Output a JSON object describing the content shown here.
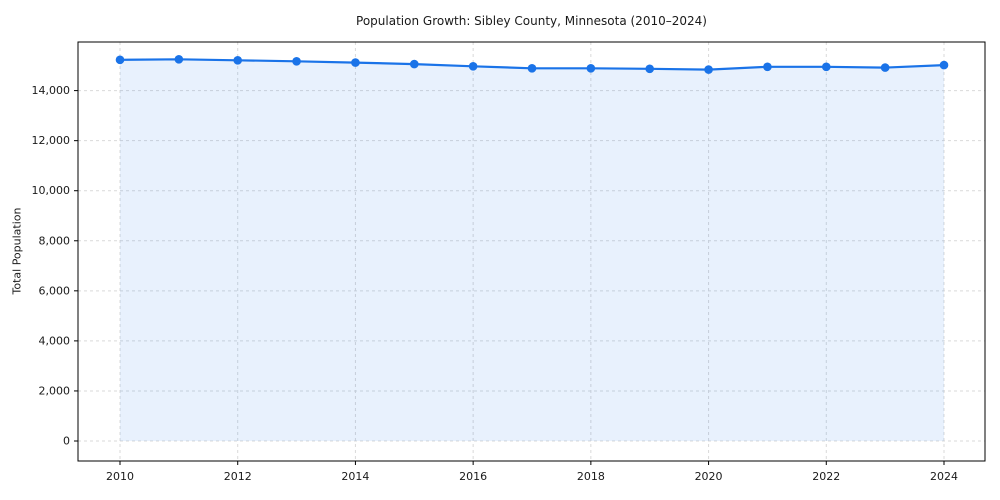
{
  "chart_data": {
    "type": "area",
    "title": "Population Growth: Sibley County, Minnesota (2010–2024)",
    "xlabel": "",
    "ylabel": "Total Population",
    "x": [
      2010,
      2011,
      2012,
      2013,
      2014,
      2015,
      2016,
      2017,
      2018,
      2019,
      2020,
      2021,
      2022,
      2023,
      2024
    ],
    "series": [
      {
        "name": "Total Population",
        "values": [
          15230,
          15250,
          15210,
          15170,
          15120,
          15060,
          14970,
          14890,
          14890,
          14870,
          14840,
          14950,
          14950,
          14920,
          15020
        ]
      }
    ],
    "xticks": [
      2010,
      2012,
      2014,
      2016,
      2018,
      2020,
      2022,
      2024
    ],
    "yticks": [
      0,
      2000,
      4000,
      6000,
      8000,
      10000,
      12000,
      14000
    ],
    "ytick_labels": [
      "0",
      "2,000",
      "4,000",
      "6,000",
      "8,000",
      "10,000",
      "12,000",
      "14,000"
    ],
    "ylim": [
      -760,
      16010
    ],
    "grid": true,
    "legend": "none",
    "line_color": "#1a73e8",
    "fill_color": "rgba(26,115,232,0.10)",
    "marker": "circle"
  }
}
